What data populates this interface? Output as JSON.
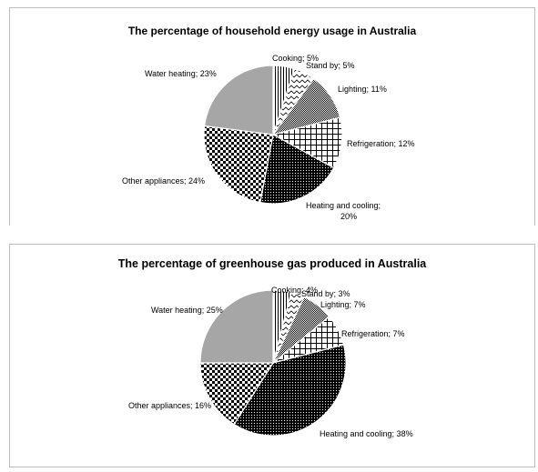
{
  "chart_data": [
    {
      "type": "pie",
      "title": "The percentage of household energy usage  in Australia",
      "slices": [
        {
          "label": "Cooking; 5%",
          "value": 5,
          "pattern": "vlines"
        },
        {
          "label": "Stand by; 5%",
          "value": 5,
          "pattern": "zigzag"
        },
        {
          "label": "Lighting; 11%",
          "value": 11,
          "pattern": "checker-fine"
        },
        {
          "label": "Refrigeration; 12%",
          "value": 12,
          "pattern": "grid"
        },
        {
          "label": "Heating and cooling; 20%",
          "value": 20,
          "pattern": "dots-dense"
        },
        {
          "label": "Other appliances; 24%",
          "value": 24,
          "pattern": "checker"
        },
        {
          "label": "Water heating; 23%",
          "value": 23,
          "pattern": "gray"
        }
      ]
    },
    {
      "type": "pie",
      "title": "The percentage of greenhouse gas produced in Australia",
      "slices": [
        {
          "label": "Cooking; 4%",
          "value": 4,
          "pattern": "vlines"
        },
        {
          "label": "Stand by; 3%",
          "value": 3,
          "pattern": "zigzag"
        },
        {
          "label": "Lighting; 7%",
          "value": 7,
          "pattern": "checker-fine"
        },
        {
          "label": "Refrigeration; 7%",
          "value": 7,
          "pattern": "grid"
        },
        {
          "label": "Heating and cooling; 38%",
          "value": 38,
          "pattern": "dots-dense"
        },
        {
          "label": "Other appliances; 16%",
          "value": 16,
          "pattern": "checker"
        },
        {
          "label": "Water heating; 25%",
          "value": 25,
          "pattern": "gray"
        }
      ]
    }
  ]
}
